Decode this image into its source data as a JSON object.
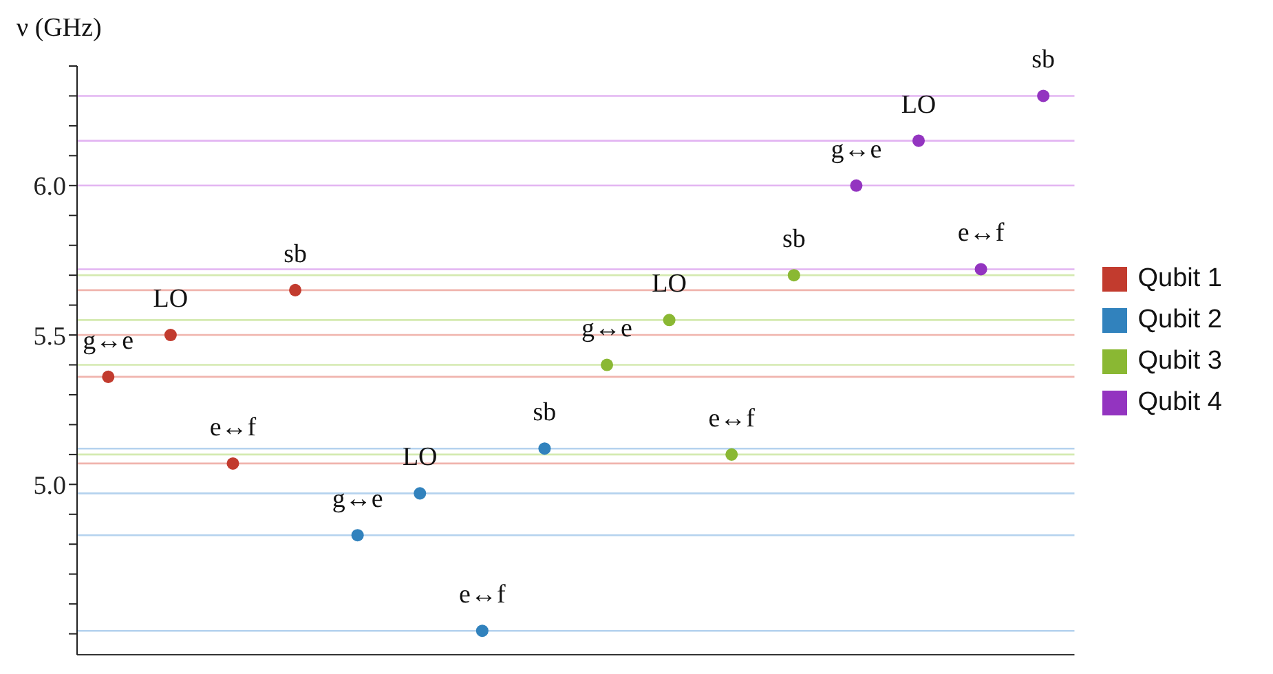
{
  "chart_data": {
    "type": "scatter",
    "ylabel": "ν (GHz)",
    "marker": "circle",
    "legend": "right",
    "grid": false,
    "categories": [
      null,
      null,
      null,
      null,
      null,
      null,
      null,
      null,
      null,
      null,
      null,
      null,
      null,
      null,
      null,
      null
    ],
    "ylim": [
      4.43,
      6.4
    ],
    "yticks": [
      {
        "value": 4.5,
        "label": null
      },
      {
        "value": 4.6,
        "label": null
      },
      {
        "value": 4.7,
        "label": null
      },
      {
        "value": 4.8,
        "label": null
      },
      {
        "value": 4.9,
        "label": null
      },
      {
        "value": 5.0,
        "label": "5.0"
      },
      {
        "value": 5.1,
        "label": null
      },
      {
        "value": 5.2,
        "label": null
      },
      {
        "value": 5.3,
        "label": null
      },
      {
        "value": 5.4,
        "label": null
      },
      {
        "value": 5.5,
        "label": "5.5"
      },
      {
        "value": 5.6,
        "label": null
      },
      {
        "value": 5.7,
        "label": null
      },
      {
        "value": 5.8,
        "label": null
      },
      {
        "value": 5.9,
        "label": null
      },
      {
        "value": 6.0,
        "label": "6.0"
      },
      {
        "value": 6.1,
        "label": null
      },
      {
        "value": 6.2,
        "label": null
      },
      {
        "value": 6.3,
        "label": null
      },
      {
        "value": 6.4,
        "label": null
      }
    ],
    "series": [
      {
        "name": "Qubit 1",
        "color": "#c23b2e",
        "values": [
          5.36,
          5.5,
          5.07,
          5.65,
          null,
          null,
          null,
          null,
          null,
          null,
          null,
          null,
          null,
          null,
          null,
          null
        ],
        "value_labels": [
          "g↔e",
          "LO",
          "e↔f",
          "sb",
          null,
          null,
          null,
          null,
          null,
          null,
          null,
          null,
          null,
          null,
          null,
          null
        ]
      },
      {
        "name": "Qubit 2",
        "color": "#3182bd",
        "values": [
          null,
          null,
          null,
          null,
          4.83,
          4.97,
          4.51,
          5.12,
          null,
          null,
          null,
          null,
          null,
          null,
          null,
          null
        ],
        "value_labels": [
          null,
          null,
          null,
          null,
          "g↔e",
          "LO",
          "e↔f",
          "sb",
          null,
          null,
          null,
          null,
          null,
          null,
          null,
          null
        ]
      },
      {
        "name": "Qubit 3",
        "color": "#8ab833",
        "values": [
          null,
          null,
          null,
          null,
          null,
          null,
          null,
          null,
          5.4,
          5.55,
          5.1,
          5.7,
          null,
          null,
          null,
          null
        ],
        "value_labels": [
          null,
          null,
          null,
          null,
          null,
          null,
          null,
          null,
          "g↔e",
          "LO",
          "e↔f",
          "sb",
          null,
          null,
          null,
          null
        ]
      },
      {
        "name": "Qubit 4",
        "color": "#9334c0",
        "values": [
          null,
          null,
          null,
          null,
          null,
          null,
          null,
          null,
          null,
          null,
          null,
          null,
          6.0,
          6.15,
          5.72,
          6.3
        ],
        "value_labels": [
          null,
          null,
          null,
          null,
          null,
          null,
          null,
          null,
          null,
          null,
          null,
          null,
          "g↔e",
          "LO",
          "e↔f",
          "sb"
        ]
      }
    ],
    "ref_lines": [
      {
        "axis": "y",
        "value": 5.36,
        "color": "#f0b4ad"
      },
      {
        "axis": "y",
        "value": 5.5,
        "color": "#f0b4ad"
      },
      {
        "axis": "y",
        "value": 5.07,
        "color": "#f0b4ad"
      },
      {
        "axis": "y",
        "value": 5.65,
        "color": "#f0b4ad"
      },
      {
        "axis": "y",
        "value": 4.83,
        "color": "#b4d2ee"
      },
      {
        "axis": "y",
        "value": 4.97,
        "color": "#b4d2ee"
      },
      {
        "axis": "y",
        "value": 4.51,
        "color": "#b4d2ee"
      },
      {
        "axis": "y",
        "value": 5.12,
        "color": "#b4d2ee"
      },
      {
        "axis": "y",
        "value": 5.4,
        "color": "#d4eab0"
      },
      {
        "axis": "y",
        "value": 5.55,
        "color": "#d4eab0"
      },
      {
        "axis": "y",
        "value": 5.1,
        "color": "#d4eab0"
      },
      {
        "axis": "y",
        "value": 5.7,
        "color": "#d4eab0"
      },
      {
        "axis": "y",
        "value": 6.0,
        "color": "#e2b4f2"
      },
      {
        "axis": "y",
        "value": 6.15,
        "color": "#e2b4f2"
      },
      {
        "axis": "y",
        "value": 5.72,
        "color": "#e2b4f2"
      },
      {
        "axis": "y",
        "value": 6.3,
        "color": "#e2b4f2"
      }
    ]
  }
}
